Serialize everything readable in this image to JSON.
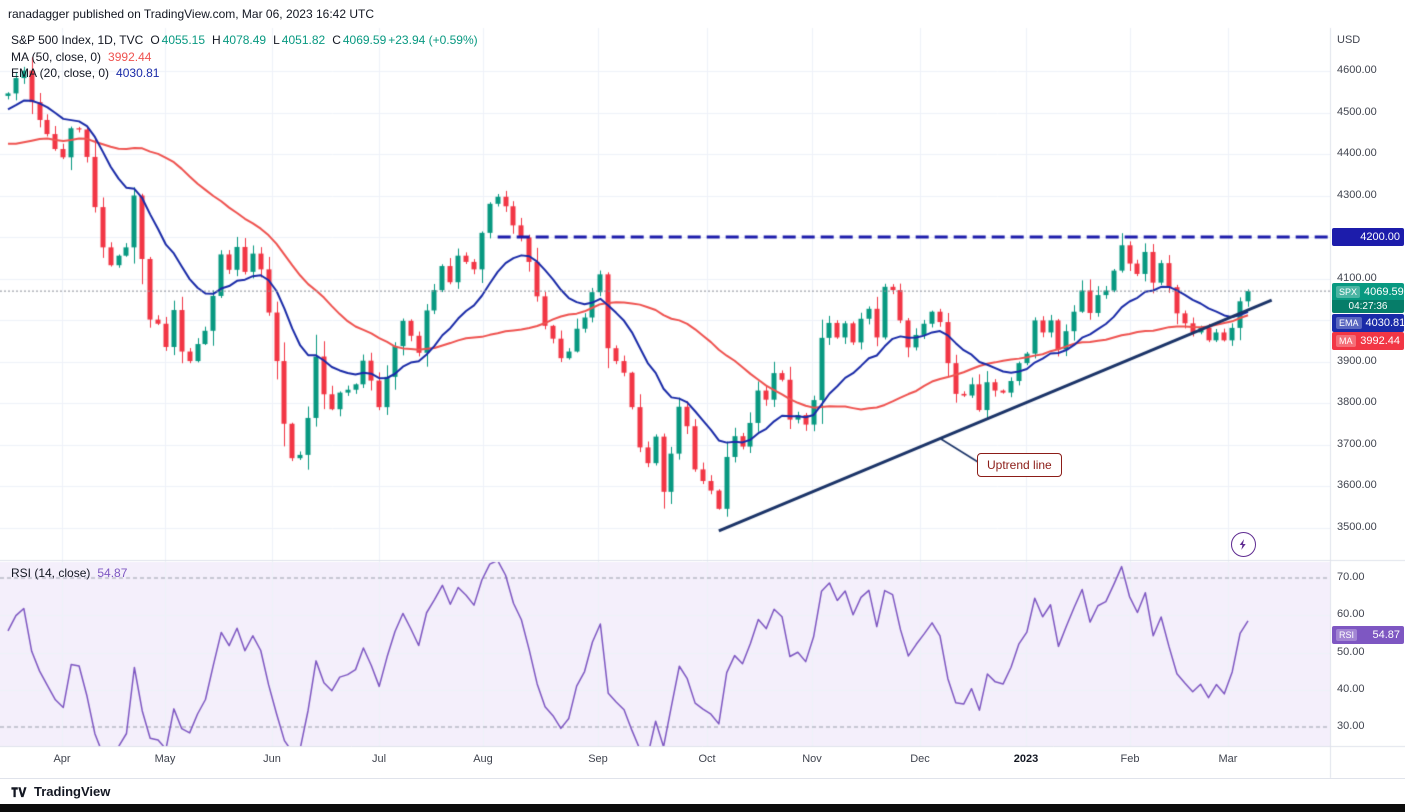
{
  "header": {
    "publish_text": "ranadagger published on TradingView.com, Mar 06, 2023 16:42 UTC"
  },
  "legend": {
    "symbol": "S&P 500 Index, 1D, TVC",
    "o_key": "O",
    "o_val": "4055.15",
    "h_key": "H",
    "h_val": "4078.49",
    "l_key": "L",
    "l_val": "4051.82",
    "c_key": "C",
    "c_val": "4069.59",
    "change": "+23.94 (+0.59%)",
    "ma_label": "MA (50, close, 0)",
    "ma_value": "3992.44",
    "ema_label": "EMA (20, close, 0)",
    "ema_value": "4030.81",
    "rsi_label": "RSI (14, close)",
    "rsi_value": "54.87"
  },
  "axis": {
    "currency": "USD",
    "price_ticks": [
      "4600.00",
      "4500.00",
      "4400.00",
      "4300.00",
      "4100.00",
      "3900.00",
      "3800.00",
      "3700.00",
      "3600.00",
      "3500.00"
    ],
    "rsi_ticks": [
      "70.00",
      "60.00",
      "50.00",
      "40.00",
      "30.00"
    ],
    "months": [
      "Apr",
      "May",
      "Jun",
      "Jul",
      "Aug",
      "Sep",
      "Oct",
      "Nov",
      "Dec",
      "2023",
      "Feb",
      "Mar"
    ],
    "badges": {
      "level": {
        "text": "4200.00"
      },
      "spx": {
        "tag": "SPX",
        "value": "4069.59",
        "countdown": "04:27:36"
      },
      "ema": {
        "tag": "EMA",
        "value": "4030.81"
      },
      "ma": {
        "tag": "MA",
        "value": "3992.44"
      },
      "rsi": {
        "tag": "RSI",
        "value": "54.87"
      }
    }
  },
  "footer": {
    "brand": "TradingView"
  },
  "colors": {
    "up": "#089981",
    "down": "#f23645",
    "ma": "#ef5350",
    "ema": "#1a2ba8",
    "rsi": "#7e57c2",
    "level": "#1c1cab",
    "trend": "#1b3468",
    "grid": "#eef2f9",
    "separator": "#e0e3eb",
    "rsi_bg": "#f4effb",
    "price_line": "#8a8e99",
    "badge_level": "#1c1cab",
    "badge_spx": "#089981",
    "badge_ema": "#1a2ba8",
    "badge_ma": "#f23645",
    "badge_rsi": "#7e57c2",
    "callout": "#8c1d18",
    "flash": "#5f2c91"
  },
  "chart_data": {
    "type": "candlestick",
    "title": "S&P 500 Index, 1D, TVC",
    "symbol": "SPX",
    "timeframe": "1D",
    "last_bar": {
      "open": 4055.15,
      "high": 4078.49,
      "low": 4051.82,
      "close": 4069.59,
      "change": 23.94,
      "change_pct": 0.59
    },
    "price_axis": {
      "currency": "USD",
      "min": 3450,
      "max": 4650,
      "grid_step": 100
    },
    "x_axis_labels": [
      "Apr",
      "May",
      "Jun",
      "Jul",
      "Aug",
      "Sep",
      "Oct",
      "Nov",
      "Dec",
      "2023",
      "Feb",
      "Mar"
    ],
    "open_first": 4540,
    "closes": [
      4546,
      4583,
      4601,
      4525,
      4482,
      4448,
      4412,
      4392,
      4462,
      4459,
      4393,
      4272,
      4175,
      4132,
      4155,
      4175,
      4300,
      4147,
      4001,
      3991,
      3935,
      4024,
      3924,
      3901,
      3942,
      3974,
      4058,
      4158,
      4121,
      4176,
      4116,
      4160,
      4122,
      4018,
      3901,
      3750,
      3667,
      3675,
      3764,
      3912,
      3821,
      3785,
      3825,
      3832,
      3845,
      3902,
      3854,
      3790,
      3863,
      3937,
      3998,
      3962,
      3921,
      4023,
      4072,
      4130,
      4091,
      4155,
      4140,
      4122,
      4210,
      4280,
      4297,
      4274,
      4228,
      4199,
      4140,
      4057,
      3986,
      3955,
      3908,
      3924,
      3979,
      4006,
      4067,
      4110,
      3932,
      3901,
      3873,
      3790,
      3693,
      3655,
      3719,
      3586,
      3678,
      3791,
      3744,
      3640,
      3612,
      3589,
      3545,
      3670,
      3720,
      3695,
      3752,
      3830,
      3808,
      3872,
      3856,
      3760,
      3771,
      3748,
      3807,
      3957,
      3993,
      3958,
      3992,
      3946,
      4003,
      4027,
      3958,
      4080,
      4072,
      3999,
      3934,
      3964,
      3991,
      4020,
      3995,
      3896,
      3822,
      3818,
      3845,
      3783,
      3850,
      3830,
      3825,
      3853,
      3896,
      3919,
      3999,
      3970,
      3999,
      3929,
      3973,
      4020,
      4071,
      4017,
      4060,
      4071,
      4119,
      4180,
      4136,
      4111,
      4164,
      4090,
      4137,
      4079,
      4016,
      3992,
      3970,
      3982,
      3951,
      3970,
      3951,
      3981,
      4045,
      4069.59
    ],
    "indicator_warmup_closes": [
      4663,
      4577,
      4483,
      4397,
      4356,
      4410,
      4515,
      4477,
      4380,
      4348,
      4418,
      4500,
      4380,
      4328,
      4306,
      4201,
      4225,
      4173,
      4260,
      4170,
      4262,
      4358,
      4456,
      4511,
      4520,
      4456,
      4543,
      4575,
      4631,
      4602,
      4575,
      4530,
      4540
    ],
    "indicators": [
      {
        "type": "SMA",
        "length": 50,
        "source": "close",
        "current": 3992.44,
        "color": "#ef5350"
      },
      {
        "type": "EMA",
        "length": 20,
        "source": "close",
        "current": 4030.81,
        "color": "#1a2ba8"
      },
      {
        "type": "RSI",
        "length": 14,
        "source": "close",
        "current": 54.87,
        "overbought": 70,
        "oversold": 30,
        "color": "#7e57c2"
      }
    ],
    "annotations": {
      "horizontal_level": {
        "price": 4200,
        "style": "dashed",
        "color": "#1c1cab",
        "start_index": 62
      },
      "trendline": {
        "label": "Uptrend line",
        "i1": 90,
        "p1": 3492,
        "i2": 160,
        "p2": 4048,
        "color": "#1b3468"
      },
      "last_price_line": 4069.59
    }
  }
}
